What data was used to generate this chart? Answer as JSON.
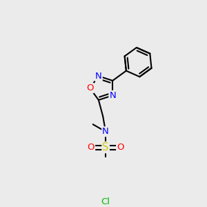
{
  "background_color": "#ebebeb",
  "fig_size": [
    3.0,
    3.0
  ],
  "dpi": 100,
  "atom_colors": {
    "N": "#0000FF",
    "O": "#FF0000",
    "S": "#CCCC00",
    "Cl": "#00BB00",
    "C": "#000000"
  },
  "bond_color": "#000000",
  "bond_width": 1.5,
  "font_size_atom": 8.5
}
